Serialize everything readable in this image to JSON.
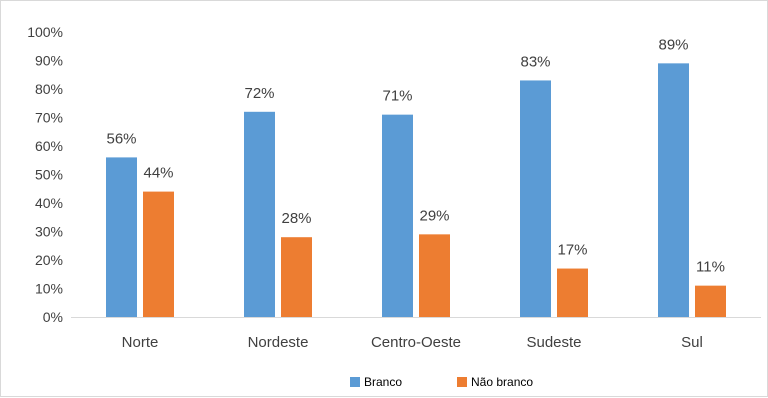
{
  "chart_data": {
    "type": "bar",
    "categories": [
      "Norte",
      "Nordeste",
      "Centro-Oeste",
      "Sudeste",
      "Sul"
    ],
    "series": [
      {
        "name": "Branco",
        "values": [
          56,
          72,
          71,
          83,
          89
        ],
        "labels": [
          "56%",
          "72%",
          "71%",
          "83%",
          "89%"
        ],
        "color": "#5B9BD5"
      },
      {
        "name": "Não branco",
        "values": [
          44,
          28,
          29,
          17,
          11
        ],
        "labels": [
          "44%",
          "28%",
          "29%",
          "17%",
          "11%"
        ],
        "color": "#ED7D31"
      }
    ],
    "y_ticks": [
      "0%",
      "10%",
      "20%",
      "30%",
      "40%",
      "50%",
      "60%",
      "70%",
      "80%",
      "90%",
      "100%"
    ],
    "ylim": [
      0,
      100
    ],
    "grid": false,
    "legend_position": "bottom"
  }
}
